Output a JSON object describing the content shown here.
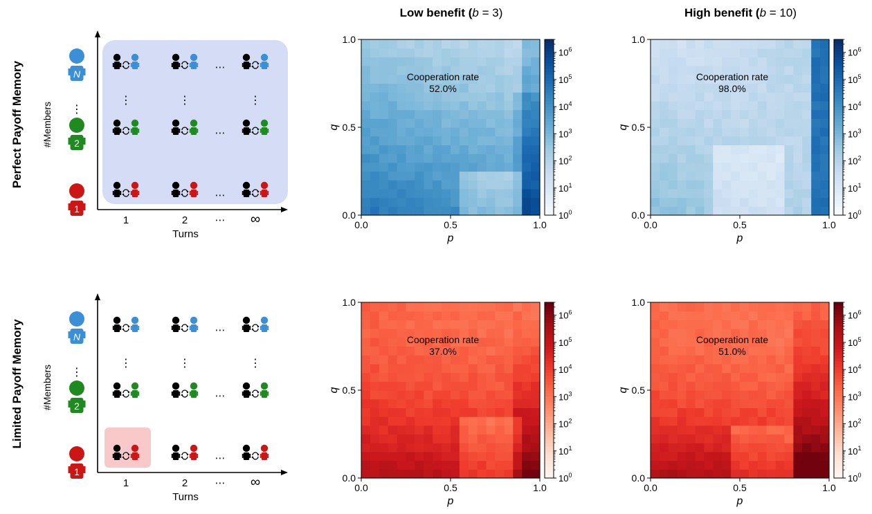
{
  "row_labels": [
    "Perfect Payoff Memory",
    "Limited Payoff Memory"
  ],
  "column_titles": [
    {
      "main": "Low benefit (",
      "b": "b",
      "eq": " = 3)"
    },
    {
      "main": "High benefit (",
      "b": "b",
      "eq": " = 10)"
    }
  ],
  "schematic": {
    "ylabel": "#Members",
    "xlabel": "Turns",
    "x_ticks": [
      "1",
      "2",
      "⋯",
      "∞"
    ],
    "agent_numbers": [
      "N",
      "2",
      "1"
    ],
    "row_ellipsis": "⋯",
    "col_ellipsis": "⋮",
    "colors": {
      "blue": "#3a8fd6",
      "green": "#1f8a1f",
      "red": "#cc1515",
      "black": "#000000",
      "panel_blue": "#d5ddf6",
      "panel_red": "#f9c9ca"
    }
  },
  "chart_data": [
    {
      "type": "heatmap",
      "name": "perfect-low",
      "colormap": "Blues",
      "annotation": [
        "Cooperation rate",
        "52.0%"
      ],
      "xlabel": "p",
      "ylabel": "q",
      "xlim": [
        0,
        1
      ],
      "ylim": [
        0,
        1
      ],
      "x_ticks": [
        "0.0",
        "0.5",
        "1.0"
      ],
      "y_ticks": [
        "0.0",
        "0.5",
        "1.0"
      ],
      "colorbar": {
        "scale": "log",
        "range": [
          1,
          3000000
        ],
        "tick_exponents": [
          0,
          1,
          2,
          3,
          4,
          5,
          6
        ]
      },
      "grid_size": 20
    },
    {
      "type": "heatmap",
      "name": "perfect-high",
      "colormap": "Blues",
      "annotation": [
        "Cooperation rate",
        "98.0%"
      ],
      "xlabel": "p",
      "ylabel": "q",
      "xlim": [
        0,
        1
      ],
      "ylim": [
        0,
        1
      ],
      "x_ticks": [
        "0.0",
        "0.5",
        "1.0"
      ],
      "y_ticks": [
        "0.0",
        "0.5",
        "1.0"
      ],
      "colorbar": {
        "scale": "log",
        "range": [
          1,
          3000000
        ],
        "tick_exponents": [
          0,
          1,
          2,
          3,
          4,
          5,
          6
        ]
      },
      "grid_size": 20
    },
    {
      "type": "heatmap",
      "name": "limited-low",
      "colormap": "Reds",
      "annotation": [
        "Cooperation rate",
        "37.0%"
      ],
      "xlabel": "p",
      "ylabel": "q",
      "xlim": [
        0,
        1
      ],
      "ylim": [
        0,
        1
      ],
      "x_ticks": [
        "0.0",
        "0.5",
        "1.0"
      ],
      "y_ticks": [
        "0.0",
        "0.5",
        "1.0"
      ],
      "colorbar": {
        "scale": "log",
        "range": [
          1,
          3000000
        ],
        "tick_exponents": [
          0,
          1,
          2,
          3,
          4,
          5,
          6
        ]
      },
      "grid_size": 20
    },
    {
      "type": "heatmap",
      "name": "limited-high",
      "colormap": "Reds",
      "annotation": [
        "Cooperation rate",
        "51.0%"
      ],
      "xlabel": "p",
      "ylabel": "q",
      "xlim": [
        0,
        1
      ],
      "ylim": [
        0,
        1
      ],
      "x_ticks": [
        "0.0",
        "0.5",
        "1.0"
      ],
      "y_ticks": [
        "0.0",
        "0.5",
        "1.0"
      ],
      "colorbar": {
        "scale": "log",
        "range": [
          1,
          3000000
        ],
        "tick_exponents": [
          0,
          1,
          2,
          3,
          4,
          5,
          6
        ]
      },
      "grid_size": 20
    }
  ]
}
